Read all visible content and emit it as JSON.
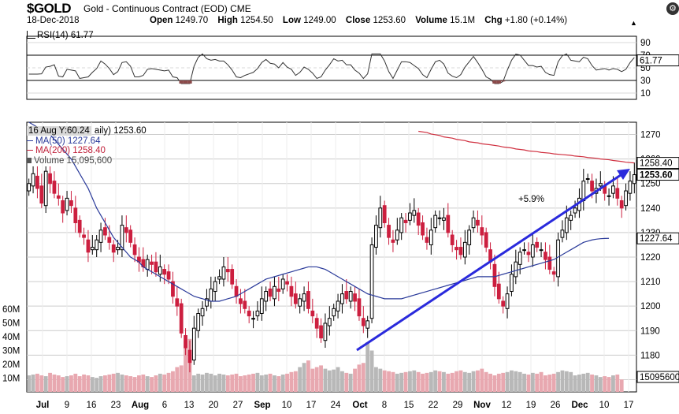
{
  "header": {
    "ticker": "$GOLD",
    "description": "Gold - Continuous Contract (EOD) CME",
    "date": "18-Dec-2018",
    "open_label": "Open",
    "open": "1249.70",
    "high_label": "High",
    "high": "1254.50",
    "low_label": "Low",
    "low": "1249.00",
    "close_label": "Close",
    "close": "1253.60",
    "volume_label": "Volume",
    "volume": "15.1M",
    "chg_label": "Chg",
    "chg": "+1.80 (+0.14%)",
    "change_icon": "up-triangle-icon",
    "toolbar_icon": "settings-icon"
  },
  "rsi": {
    "label": "RSI(14) 61.77",
    "value_tag": "61.77",
    "ticks": [
      "90",
      "70",
      "50",
      "30",
      "10"
    ],
    "colors": {
      "line": "#333333",
      "oversold_fill": "#8b4a4a",
      "band": "#000000"
    }
  },
  "legend": {
    "tooltip": "16 Aug Y:60.24",
    "price_label": "aily) 1253.60",
    "ma50": "MA(50) 1227.64",
    "ma200": "MA(200) 1258.40",
    "volume": "Volume 15,095,600"
  },
  "price_axis": {
    "ticks": [
      "1270",
      "1260",
      "1250",
      "1240",
      "1230",
      "1220",
      "1210",
      "1200",
      "1190",
      "1180",
      "1170"
    ],
    "tags": {
      "ma200": "1258.40",
      "close": "1253.60",
      "ma50": "1227.64",
      "volume": "15095600"
    }
  },
  "volume_axis": {
    "ticks": [
      "60M",
      "50M",
      "40M",
      "30M",
      "20M",
      "10M"
    ]
  },
  "date_axis": [
    "Jul",
    "9",
    "16",
    "23",
    "Aug",
    "6",
    "13",
    "20",
    "27",
    "Sep",
    "10",
    "17",
    "24",
    "Oct",
    "8",
    "15",
    "22",
    "29",
    "Nov",
    "12",
    "19",
    "26",
    "Dec",
    "10",
    "17"
  ],
  "annotation": {
    "text": "+5.9%",
    "color": "#2a2adc"
  },
  "colors": {
    "up": "#000000",
    "down": "#cc1f3f",
    "ma50": "#2a3a9a",
    "ma200": "#d03040",
    "vol_up": "#b8b8b8",
    "vol_down": "#e8a8b0",
    "grid": "#cccccc"
  },
  "chart_data": {
    "type": "candlestick",
    "title": "$GOLD Gold - Continuous Contract (EOD) CME",
    "xlabel": "",
    "ylabel": "",
    "ylim": [
      1165,
      1275
    ],
    "x_tick_labels": [
      "Jul",
      "9",
      "16",
      "23",
      "Aug",
      "6",
      "13",
      "20",
      "27",
      "Sep",
      "10",
      "17",
      "24",
      "Oct",
      "8",
      "15",
      "22",
      "29",
      "Nov",
      "12",
      "19",
      "26",
      "Dec",
      "10",
      "17"
    ],
    "series": [
      {
        "name": "Close",
        "values": [
          1250,
          1254,
          1248,
          1242,
          1255,
          1250,
          1246,
          1244,
          1238,
          1244,
          1241,
          1234,
          1230,
          1228,
          1222,
          1224,
          1227,
          1231,
          1229,
          1226,
          1222,
          1224,
          1233,
          1230,
          1226,
          1221,
          1218,
          1216,
          1219,
          1217,
          1214,
          1216,
          1213,
          1211,
          1204,
          1200,
          1189,
          1183,
          1177,
          1191,
          1197,
          1199,
          1203,
          1207,
          1210,
          1212,
          1216,
          1214,
          1209,
          1204,
          1201,
          1199,
          1196,
          1195,
          1198,
          1203,
          1206,
          1204,
          1208,
          1206,
          1211,
          1209,
          1204,
          1201,
          1203,
          1205,
          1199,
          1196,
          1191,
          1187,
          1193,
          1195,
          1199,
          1202,
          1205,
          1203,
          1206,
          1202,
          1196,
          1192,
          1194,
          1225,
          1233,
          1240,
          1234,
          1228,
          1226,
          1231,
          1236,
          1234,
          1238,
          1239,
          1233,
          1229,
          1226,
          1231,
          1237,
          1236,
          1236,
          1230,
          1225,
          1223,
          1221,
          1226,
          1231,
          1236,
          1233,
          1229,
          1224,
          1218,
          1208,
          1203,
          1200,
          1205,
          1213,
          1218,
          1222,
          1223,
          1221,
          1225,
          1224,
          1223,
          1219,
          1215,
          1213,
          1227,
          1231,
          1236,
          1237,
          1240,
          1244,
          1251,
          1252,
          1247,
          1248,
          1250,
          1246,
          1245,
          1249,
          1244,
          1240,
          1247,
          1251,
          1253.6
        ]
      },
      {
        "name": "MA(50)",
        "values": [
          1275,
          1274,
          1273,
          1272,
          1271,
          1270,
          1268,
          1266,
          1264,
          1262,
          1260,
          1257,
          1254,
          1251,
          1248,
          1244,
          1240,
          1237,
          1234,
          1231,
          1228,
          1226,
          1224,
          1222,
          1220,
          1219,
          1218,
          1216,
          1215,
          1214,
          1213,
          1212,
          1211,
          1210,
          1209,
          1208,
          1207,
          1206,
          1205,
          1204,
          1203.5,
          1203,
          1202.5,
          1202,
          1202,
          1202,
          1202.5,
          1203,
          1203.5,
          1204,
          1205,
          1206,
          1207,
          1208,
          1209,
          1210,
          1211,
          1211.5,
          1212,
          1212.5,
          1213,
          1213.5,
          1214,
          1214.5,
          1215,
          1215.5,
          1216,
          1216,
          1216,
          1215.5,
          1215,
          1214,
          1213,
          1212,
          1211,
          1210,
          1209,
          1208,
          1207,
          1206,
          1205,
          1204.5,
          1204,
          1203.5,
          1203,
          1203,
          1203,
          1203,
          1203,
          1203.5,
          1204,
          1204.5,
          1205,
          1205.5,
          1206,
          1206.5,
          1207,
          1207.5,
          1208,
          1208.5,
          1209,
          1209.5,
          1210,
          1210.5,
          1211,
          1211.5,
          1212,
          1212,
          1212,
          1212,
          1212,
          1212.5,
          1213,
          1213.5,
          1214,
          1214.5,
          1215,
          1215.5,
          1216,
          1216.5,
          1217,
          1217.5,
          1218,
          1218.5,
          1219,
          1220,
          1221,
          1222,
          1223,
          1224,
          1225,
          1226,
          1226.5,
          1227,
          1227.3,
          1227.5,
          1227.6,
          1227.64
        ]
      },
      {
        "name": "MA(200)",
        "values": [
          1271.3,
          1270.8,
          1270.2,
          1269.6,
          1269,
          1268.5,
          1268,
          1267.5,
          1267,
          1266.6,
          1266.2,
          1265.8,
          1265.3,
          1264.9,
          1264.5,
          1264.1,
          1263.7,
          1263.3,
          1263,
          1262.7,
          1262.4,
          1262.1,
          1261.8,
          1261.5,
          1261.2,
          1260.9,
          1260.6,
          1260.3,
          1260,
          1259.7,
          1259.4,
          1259,
          1258.7,
          1258.4
        ]
      },
      {
        "name": "Volume",
        "values": [
          20,
          21,
          22,
          20,
          19,
          23,
          21,
          20,
          18,
          19,
          20,
          22,
          19,
          21,
          20,
          18,
          17,
          19,
          20,
          21,
          22,
          23,
          21,
          20,
          19,
          18,
          20,
          21,
          19,
          18,
          20,
          22,
          21,
          23,
          25,
          30,
          32,
          62,
          64,
          20,
          22,
          21,
          23,
          22,
          20,
          22,
          21,
          20,
          21,
          22,
          19,
          20,
          21,
          22,
          23,
          20,
          21,
          22,
          20,
          19,
          21,
          22,
          24,
          25,
          30,
          35,
          38,
          28,
          30,
          32,
          28,
          26,
          27,
          30,
          25,
          23,
          22,
          28,
          33,
          35,
          60,
          50,
          30,
          28,
          26,
          25,
          24,
          22,
          23,
          24,
          25,
          26,
          24,
          22,
          23,
          24,
          26,
          25,
          24,
          22,
          23,
          25,
          26,
          24,
          23,
          25,
          26,
          28,
          24,
          22,
          20,
          22,
          23,
          24,
          26,
          25,
          24,
          22,
          21,
          23,
          22,
          24,
          20,
          21,
          22,
          24,
          26,
          25,
          24,
          20,
          21,
          22,
          23,
          21,
          20,
          18,
          19,
          18,
          20,
          21,
          15
        ]
      }
    ]
  }
}
